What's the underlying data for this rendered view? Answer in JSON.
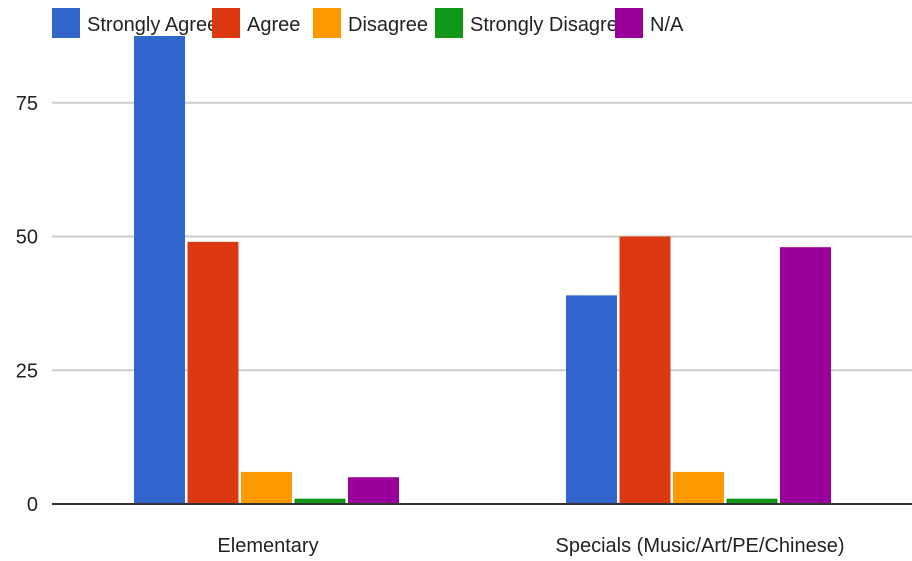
{
  "chart_data": {
    "type": "bar",
    "categories": [
      "Elementary",
      "Specials (Music/Art/PE/Chinese)"
    ],
    "series": [
      {
        "name": "Strongly Agree",
        "color": "#3366cc",
        "values": [
          88,
          39
        ]
      },
      {
        "name": "Agree",
        "color": "#dc3912",
        "values": [
          49,
          50
        ]
      },
      {
        "name": "Disagree",
        "color": "#ff9900",
        "values": [
          6,
          6
        ]
      },
      {
        "name": "Strongly Disagree",
        "color": "#109618",
        "values": [
          1,
          1
        ]
      },
      {
        "name": "N/A",
        "color": "#990099",
        "values": [
          5,
          48
        ]
      }
    ],
    "y_ticks": [
      "0",
      "25",
      "50",
      "75"
    ],
    "y_tick_values": [
      0,
      25,
      50,
      75
    ],
    "ylim": [
      0,
      88
    ],
    "grid": true,
    "legend_position": "top"
  }
}
